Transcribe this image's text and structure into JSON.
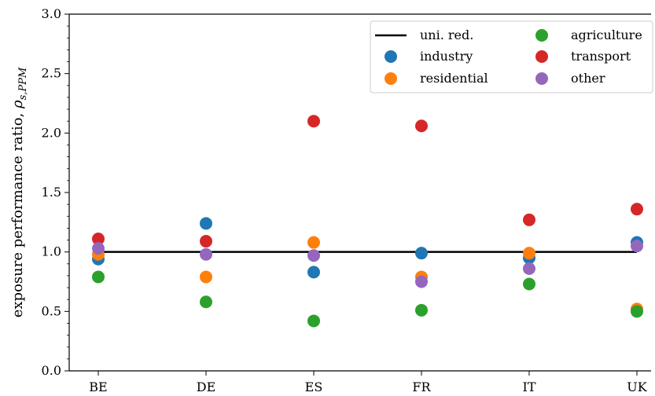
{
  "chart_data": {
    "type": "scatter",
    "title": "",
    "xlabel": "",
    "ylabel": "exposure performance ratio, ",
    "ylabel_symbol": "ρ",
    "ylabel_subscript": "s,PPM",
    "categories": [
      "BE",
      "DE",
      "ES",
      "FR",
      "IT",
      "UK"
    ],
    "ylim": [
      0.0,
      3.0
    ],
    "yticks": [
      "0.0",
      "0.5",
      "1.0",
      "1.5",
      "2.0",
      "2.5",
      "3.0"
    ],
    "grid": false,
    "legend_position": "top-right",
    "reference_line": {
      "name": "uni. red.",
      "y": 1.0,
      "color": "#000000"
    },
    "series": [
      {
        "name": "industry",
        "color": "#1f77b4",
        "values": [
          0.94,
          1.24,
          0.83,
          0.99,
          0.95,
          1.08
        ]
      },
      {
        "name": "residential",
        "color": "#ff7f0e",
        "values": [
          0.98,
          0.79,
          1.08,
          0.79,
          0.99,
          0.52
        ]
      },
      {
        "name": "agriculture",
        "color": "#2ca02c",
        "values": [
          0.79,
          0.58,
          0.42,
          0.51,
          0.73,
          0.5
        ]
      },
      {
        "name": "transport",
        "color": "#d62728",
        "values": [
          1.11,
          1.09,
          2.1,
          2.06,
          1.27,
          1.36
        ]
      },
      {
        "name": "other",
        "color": "#9467bd",
        "values": [
          1.03,
          0.98,
          0.97,
          0.75,
          0.86,
          1.05
        ]
      }
    ]
  }
}
